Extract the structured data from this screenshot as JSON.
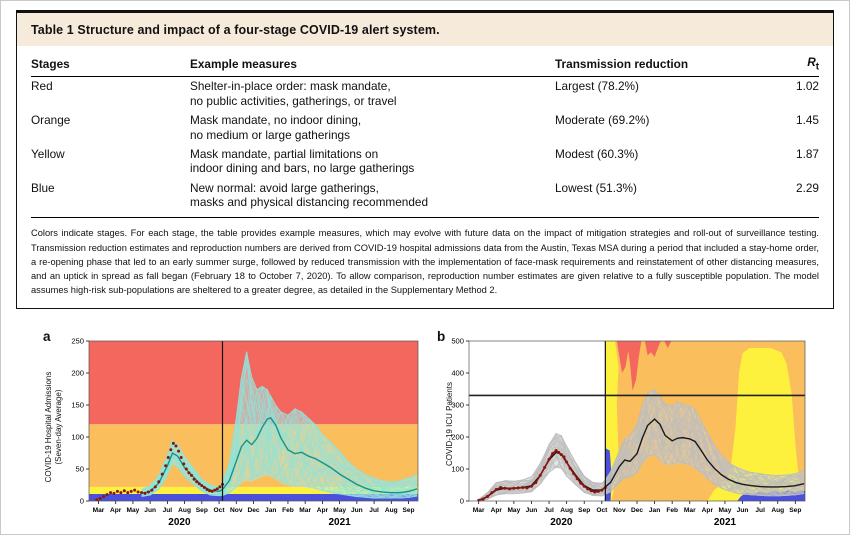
{
  "colors": {
    "title_band": "#f6ebda",
    "red": "#f4675e",
    "orange": "#fbbe5c",
    "yellow": "#fdf13d",
    "blue": "#4a50dc"
  },
  "table": {
    "title": "Table 1 Structure and impact of a four-stage COVID-19 alert system.",
    "columns": [
      "Stages",
      "Example measures",
      "Transmission reduction"
    ],
    "rt": {
      "base": "R",
      "sub": "t"
    },
    "rows": [
      {
        "stage": "Red",
        "measures": "Shelter-in-place order: mask mandate,\nno public activities, gatherings, or travel",
        "reduction": "Largest (78.2%)",
        "rt": "1.02"
      },
      {
        "stage": "Orange",
        "measures": "Mask mandate, no indoor dining,\nno medium or large gatherings",
        "reduction": "Moderate (69.2%)",
        "rt": "1.45"
      },
      {
        "stage": "Yellow",
        "measures": "Mask mandate, partial limitations on\nindoor dining and bars, no large gatherings",
        "reduction": "Modest (60.3%)",
        "rt": "1.87"
      },
      {
        "stage": "Blue",
        "measures": "New normal: avoid large gatherings,\nmasks and physical distancing recommended",
        "reduction": "Lowest (51.3%)",
        "rt": "2.29"
      }
    ],
    "footnote": "Colors indicate stages. For each stage, the table provides example measures, which may evolve with future data on the impact of mitigation strategies and roll-out of surveillance testing. Transmission reduction estimates and reproduction numbers are derived from COVID-19 hospital admissions data from the Austin, Texas MSA during a period that included a stay-home order, a re-opening phase that led to an early summer surge, followed by reduced transmission with the implementation of face-mask requirements and reinstatement of other distancing measures, and an uptick in spread as fall began (February 18 to October 7, 2020). To allow comparison, reproduction number estimates are given relative to a fully susceptible population. The model assumes high-risk sub-populations are sheltered to a greater degree, as detailed in the Supplementary Method 2."
  },
  "chart_data": [
    {
      "panel": "a",
      "type": "area",
      "ylabel": "COVID-19 Hospital Admissions\n(Seven-day Average)",
      "ylim": [
        0,
        250
      ],
      "yticks": [
        0,
        50,
        100,
        150,
        200,
        250
      ],
      "x_months": [
        "Mar",
        "Apr",
        "May",
        "Jun",
        "Jul",
        "Aug",
        "Sep",
        "Oct",
        "Nov",
        "Dec",
        "Jan",
        "Feb",
        "Mar",
        "Apr",
        "May",
        "Jun",
        "Jul",
        "Aug",
        "Sep"
      ],
      "year_labels": [
        {
          "text": "2020",
          "x": 4.7
        },
        {
          "text": "2021",
          "x": 14.0
        }
      ],
      "vline_x": 7.2,
      "stage_bands": [
        {
          "stage": "Blue",
          "color": "#4a50dc",
          "from": 0,
          "to": 11
        },
        {
          "stage": "Yellow",
          "color": "#fdf13d",
          "from": 11,
          "to": 22
        },
        {
          "stage": "Orange",
          "color": "#fbbe5c",
          "from": 22,
          "to": 120
        },
        {
          "stage": "Red",
          "color": "#f4675e",
          "from": 120,
          "to": 250
        }
      ],
      "observed_color": "#8c140e",
      "observed_points": [
        [
          -0.1,
          2
        ],
        [
          0.1,
          4
        ],
        [
          0.3,
          7
        ],
        [
          0.5,
          10
        ],
        [
          0.7,
          13
        ],
        [
          0.9,
          12
        ],
        [
          1.1,
          15
        ],
        [
          1.3,
          13
        ],
        [
          1.5,
          16
        ],
        [
          1.7,
          13
        ],
        [
          1.9,
          15
        ],
        [
          2.1,
          17
        ],
        [
          2.3,
          14
        ],
        [
          2.5,
          13
        ],
        [
          2.7,
          12
        ],
        [
          2.9,
          14
        ],
        [
          3.1,
          17
        ],
        [
          3.3,
          22
        ],
        [
          3.5,
          30
        ],
        [
          3.7,
          42
        ],
        [
          3.9,
          55
        ],
        [
          4.05,
          68
        ],
        [
          4.2,
          80
        ],
        [
          4.35,
          90
        ],
        [
          4.5,
          86
        ],
        [
          4.65,
          78
        ],
        [
          4.8,
          68
        ],
        [
          4.95,
          58
        ],
        [
          5.1,
          50
        ],
        [
          5.25,
          44
        ],
        [
          5.4,
          40
        ],
        [
          5.55,
          34
        ],
        [
          5.7,
          30
        ],
        [
          5.85,
          27
        ],
        [
          6.0,
          24
        ],
        [
          6.15,
          21
        ],
        [
          6.3,
          18
        ],
        [
          6.45,
          16
        ],
        [
          6.6,
          15
        ],
        [
          6.75,
          17
        ],
        [
          6.9,
          19
        ],
        [
          7.05,
          22
        ],
        [
          7.2,
          26
        ]
      ],
      "strand_count": 40,
      "projection": {
        "fill_color": "#b5ece6",
        "strand_color": "#8fe3da",
        "line_color": "#15938a",
        "x": [
          2.5,
          3,
          3.5,
          4,
          4.3,
          4.6,
          5,
          5.5,
          6,
          6.5,
          7,
          7.2,
          7.6,
          8,
          8.3,
          8.6,
          8.9,
          9.2,
          9.5,
          9.8,
          10,
          10.3,
          10.6,
          11,
          11.4,
          11.8,
          12.2,
          12.6,
          13,
          13.5,
          14,
          14.5,
          15,
          15.5,
          16,
          16.5,
          17,
          17.5,
          18,
          18.5
        ],
        "mean": [
          12,
          15,
          28,
          55,
          75,
          70,
          52,
          38,
          24,
          17,
          15,
          18,
          32,
          62,
          85,
          95,
          88,
          98,
          115,
          128,
          130,
          118,
          98,
          80,
          74,
          76,
          70,
          66,
          60,
          52,
          42,
          34,
          26,
          20,
          16,
          14,
          13,
          13,
          15,
          19
        ],
        "upper": [
          18,
          24,
          40,
          72,
          95,
          88,
          70,
          52,
          34,
          25,
          22,
          30,
          60,
          130,
          195,
          235,
          195,
          175,
          180,
          175,
          165,
          150,
          140,
          135,
          145,
          140,
          130,
          120,
          105,
          92,
          78,
          62,
          50,
          42,
          36,
          32,
          30,
          32,
          36,
          42
        ],
        "lower": [
          7,
          9,
          18,
          40,
          58,
          52,
          38,
          26,
          15,
          9,
          8,
          8,
          12,
          20,
          28,
          32,
          30,
          34,
          38,
          40,
          38,
          34,
          28,
          24,
          22,
          22,
          20,
          18,
          15,
          12,
          10,
          8,
          6,
          5,
          4,
          4,
          4,
          4,
          5,
          7
        ]
      }
    },
    {
      "panel": "b",
      "type": "area",
      "ylabel": "COVID-19 ICU Patients",
      "ylim": [
        0,
        500
      ],
      "yticks": [
        0,
        100,
        200,
        300,
        400,
        500
      ],
      "x_months": [
        "Mar",
        "Apr",
        "May",
        "Jun",
        "Jul",
        "Aug",
        "Sep",
        "Oct",
        "Nov",
        "Dec",
        "Jan",
        "Feb",
        "Mar",
        "Apr",
        "May",
        "Jun",
        "Jul",
        "Aug",
        "Sep"
      ],
      "year_labels": [
        {
          "text": "2020",
          "x": 4.7
        },
        {
          "text": "2021",
          "x": 14.0
        }
      ],
      "vline_x": 7.2,
      "capacity_line": 330,
      "stage_regions": [
        {
          "stage": "Orange",
          "color": "#fbbe5c",
          "points": [
            [
              7.2,
              0
            ],
            [
              7.2,
              500
            ],
            [
              18.6,
              500
            ],
            [
              18.6,
              0
            ]
          ]
        },
        {
          "stage": "Yellow",
          "color": "#fdf13d",
          "points": [
            [
              7.2,
              500
            ],
            [
              7.75,
              500
            ],
            [
              7.95,
              420
            ],
            [
              7.85,
              300
            ],
            [
              7.95,
              150
            ],
            [
              7.7,
              40
            ],
            [
              7.55,
              0
            ],
            [
              7.2,
              0
            ]
          ]
        },
        {
          "stage": "Blue",
          "color": "#4a50dc",
          "points": [
            [
              7.2,
              165
            ],
            [
              7.45,
              158
            ],
            [
              7.55,
              80
            ],
            [
              7.5,
              0
            ],
            [
              7.2,
              0
            ]
          ]
        },
        {
          "stage": "Red",
          "color": "#f4675e",
          "points": [
            [
              7.85,
              500
            ],
            [
              8.0,
              450
            ],
            [
              8.15,
              400
            ],
            [
              8.35,
              420
            ],
            [
              8.5,
              470
            ],
            [
              8.6,
              430
            ],
            [
              8.75,
              345
            ],
            [
              8.95,
              380
            ],
            [
              9.1,
              450
            ],
            [
              9.25,
              500
            ]
          ]
        },
        {
          "stage": "Red",
          "color": "#f4675e",
          "points": [
            [
              9.45,
              500
            ],
            [
              9.6,
              455
            ],
            [
              9.8,
              465
            ],
            [
              10.0,
              450
            ],
            [
              10.2,
              480
            ],
            [
              10.35,
              500
            ]
          ]
        },
        {
          "stage": "Red",
          "color": "#f4675e",
          "points": [
            [
              10.55,
              500
            ],
            [
              10.75,
              478
            ],
            [
              10.95,
              500
            ]
          ]
        },
        {
          "stage": "Yellow",
          "color": "#fdf13d",
          "points": [
            [
              13.0,
              0
            ],
            [
              13.4,
              35
            ],
            [
              13.9,
              55
            ],
            [
              14.3,
              90
            ],
            [
              14.6,
              230
            ],
            [
              14.8,
              400
            ],
            [
              15.0,
              462
            ],
            [
              15.4,
              478
            ],
            [
              16.6,
              478
            ],
            [
              17.2,
              465
            ],
            [
              17.5,
              430
            ],
            [
              17.8,
              330
            ],
            [
              18.0,
              180
            ],
            [
              18.2,
              70
            ],
            [
              18.45,
              25
            ],
            [
              18.6,
              18
            ],
            [
              18.6,
              0
            ]
          ]
        },
        {
          "stage": "Blue",
          "color": "#4a50dc",
          "points": [
            [
              14.7,
              0
            ],
            [
              14.9,
              14
            ],
            [
              15.2,
              26
            ],
            [
              15.6,
              22
            ],
            [
              16.0,
              30
            ],
            [
              16.4,
              24
            ],
            [
              16.8,
              32
            ],
            [
              17.2,
              26
            ],
            [
              17.6,
              34
            ],
            [
              18.0,
              28
            ],
            [
              18.3,
              34
            ],
            [
              18.6,
              30
            ],
            [
              18.6,
              0
            ]
          ]
        }
      ],
      "observed_color": "#8c140e",
      "observed_points": [
        [
          0,
          2
        ],
        [
          0.25,
          6
        ],
        [
          0.5,
          14
        ],
        [
          0.75,
          26
        ],
        [
          1,
          36
        ],
        [
          1.25,
          42
        ],
        [
          1.5,
          40
        ],
        [
          1.75,
          38
        ],
        [
          2,
          40
        ],
        [
          2.25,
          41
        ],
        [
          2.5,
          42
        ],
        [
          2.75,
          41
        ],
        [
          3,
          46
        ],
        [
          3.25,
          58
        ],
        [
          3.5,
          80
        ],
        [
          3.75,
          105
        ],
        [
          4,
          130
        ],
        [
          4.2,
          148
        ],
        [
          4.4,
          158
        ],
        [
          4.55,
          152
        ],
        [
          4.7,
          145
        ],
        [
          4.85,
          138
        ],
        [
          5,
          122
        ],
        [
          5.2,
          102
        ],
        [
          5.4,
          86
        ],
        [
          5.6,
          70
        ],
        [
          5.8,
          56
        ],
        [
          6,
          46
        ],
        [
          6.2,
          38
        ],
        [
          6.4,
          32
        ],
        [
          6.6,
          28
        ],
        [
          6.8,
          30
        ],
        [
          7,
          34
        ],
        [
          7.2,
          42
        ]
      ],
      "strand_count": 48,
      "projection": {
        "fill_color": "#d2d2d2",
        "strand_color": "#bdbdbd",
        "line_color": "#1a1a1a",
        "x": [
          0,
          0.5,
          1,
          1.5,
          2,
          2.5,
          3,
          3.5,
          4,
          4.4,
          4.7,
          5,
          5.5,
          6,
          6.5,
          7,
          7.2,
          7.5,
          8,
          8.3,
          8.6,
          9,
          9.3,
          9.6,
          10,
          10.3,
          10.6,
          11,
          11.3,
          11.6,
          12,
          12.3,
          12.6,
          13,
          13.4,
          13.8,
          14.2,
          14.6,
          15,
          15.5,
          16,
          16.5,
          17,
          17.5,
          18,
          18.5
        ],
        "mean": [
          2,
          14,
          34,
          40,
          40,
          42,
          48,
          80,
          128,
          152,
          146,
          120,
          82,
          48,
          34,
          34,
          44,
          58,
          108,
          128,
          124,
          148,
          196,
          236,
          256,
          240,
          205,
          188,
          196,
          198,
          194,
          186,
          162,
          128,
          102,
          82,
          68,
          58,
          52,
          48,
          45,
          44,
          44,
          45,
          48,
          54
        ],
        "upper": [
          5,
          26,
          58,
          64,
          62,
          66,
          76,
          118,
          178,
          212,
          205,
          172,
          122,
          78,
          58,
          56,
          66,
          92,
          158,
          195,
          205,
          240,
          300,
          340,
          350,
          330,
          305,
          298,
          312,
          305,
          298,
          288,
          255,
          215,
          175,
          145,
          122,
          108,
          98,
          90,
          86,
          82,
          80,
          82,
          86,
          96
        ],
        "lower": [
          0,
          5,
          18,
          22,
          22,
          24,
          28,
          52,
          88,
          104,
          100,
          76,
          50,
          26,
          16,
          15,
          20,
          28,
          56,
          70,
          72,
          86,
          115,
          135,
          142,
          125,
          112,
          112,
          118,
          115,
          110,
          100,
          88,
          68,
          50,
          38,
          30,
          24,
          20,
          18,
          16,
          15,
          15,
          16,
          18,
          22
        ]
      }
    }
  ]
}
